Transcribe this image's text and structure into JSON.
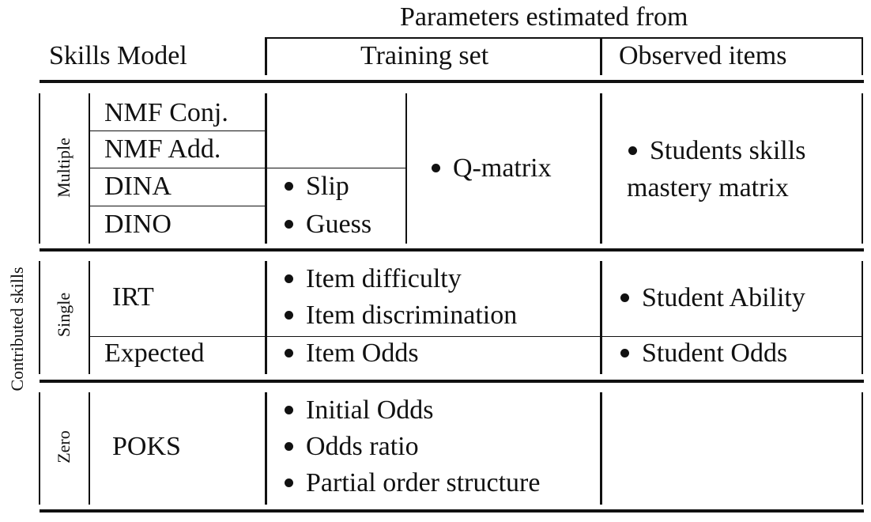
{
  "header": {
    "params_title": "Parameters estimated from",
    "skills_model": "Skills Model",
    "training_set": "Training set",
    "observed_items": "Observed items"
  },
  "side_label": "Contributed skills",
  "groups": {
    "multiple": {
      "label": "Multiple",
      "models": [
        "NMF Conj.",
        "NMF Add.",
        "DINA",
        "DINO"
      ],
      "training_slip_guess": [
        "Slip",
        "Guess"
      ],
      "training_shared": "Q-matrix",
      "observed": [
        "Students skills",
        "mastery matrix"
      ]
    },
    "single": {
      "label": "Single",
      "irt": {
        "model": "IRT",
        "training": [
          "Item difficulty",
          "Item discrimination"
        ],
        "observed": "Student Ability"
      },
      "expected": {
        "model": "Expected",
        "training": "Item Odds",
        "observed": "Student Odds"
      }
    },
    "zero": {
      "label": "Zero",
      "poks": {
        "model": "POKS",
        "training": [
          "Initial Odds",
          "Odds ratio",
          "Partial order structure"
        ],
        "observed": ""
      }
    }
  }
}
